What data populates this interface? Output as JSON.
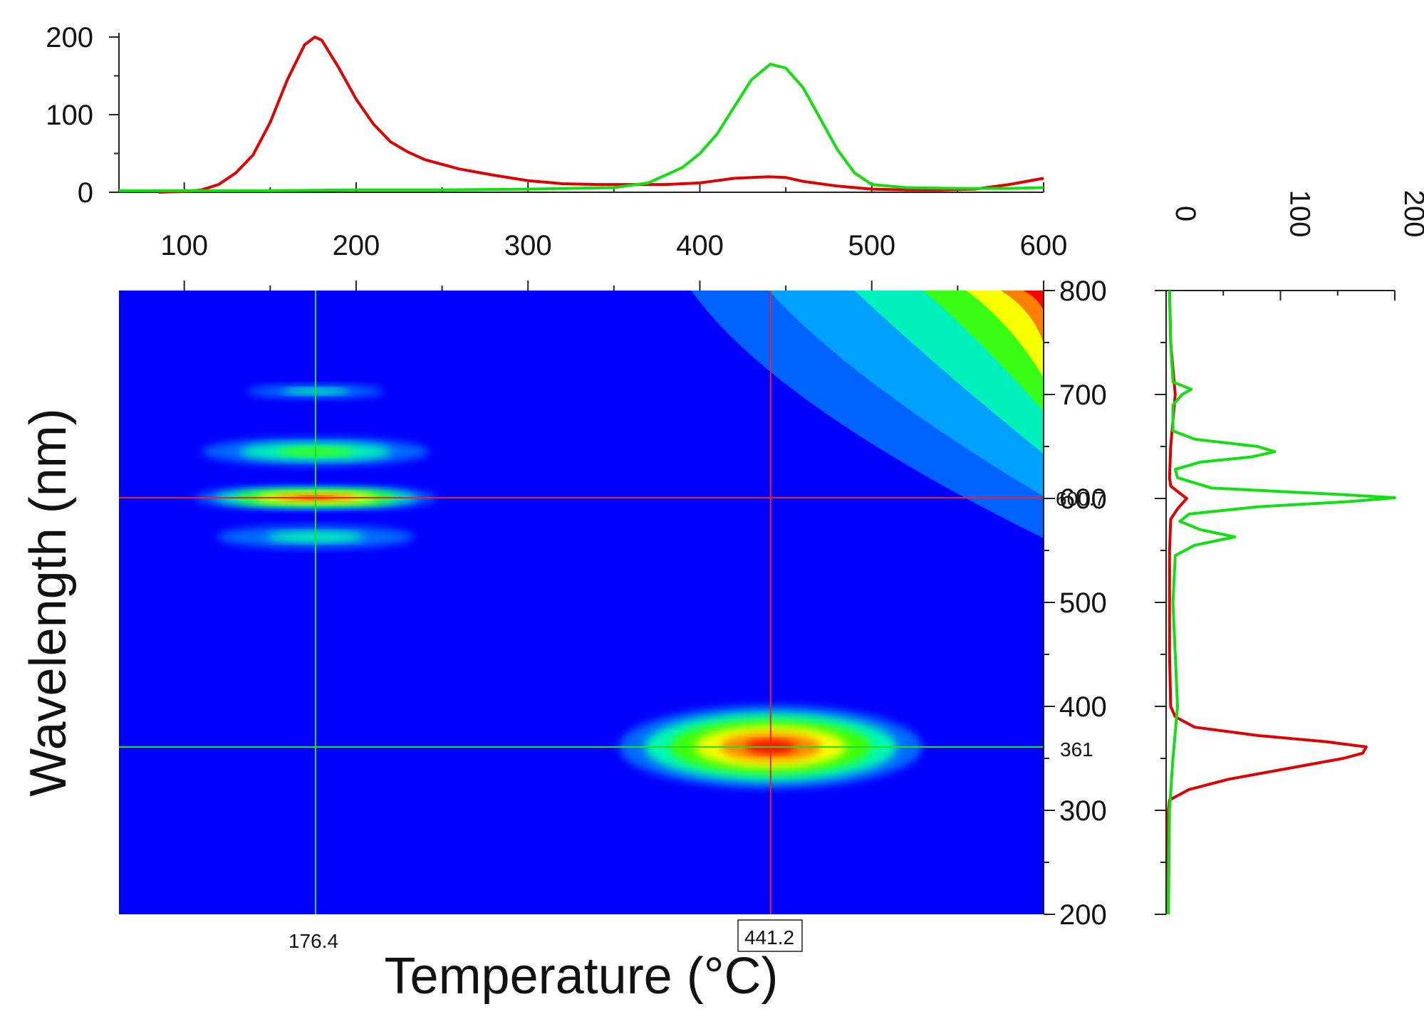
{
  "chart_data": [
    {
      "type": "heatmap",
      "panel": "main-contour-map",
      "xlabel": "Temperature (°C)",
      "ylabel": "Wavelength (nm)",
      "xlim": [
        62,
        600
      ],
      "ylim": [
        200,
        800
      ],
      "y_ticks": [
        200,
        300,
        400,
        500,
        600,
        700,
        800
      ],
      "colormap": [
        "#0000ff",
        "#00b4ff",
        "#00ffb0",
        "#40ff00",
        "#ffff00",
        "#ff8000",
        "#ff0000"
      ],
      "background_color": "#0000ff",
      "hotspots": [
        {
          "x": 176.4,
          "y": 600.7,
          "sx": 32,
          "sy": 5,
          "intensity": 1.0
        },
        {
          "x": 176.4,
          "y": 645,
          "sx": 30,
          "sy": 6,
          "intensity": 0.55
        },
        {
          "x": 176.4,
          "y": 563,
          "sx": 26,
          "sy": 5,
          "intensity": 0.3
        },
        {
          "x": 176.4,
          "y": 703,
          "sx": 18,
          "sy": 3,
          "intensity": 0.12
        },
        {
          "x": 441.2,
          "y": 361,
          "sx": 40,
          "sy": 18,
          "intensity": 1.0
        }
      ],
      "high_temp_ridge": {
        "x_start": 400,
        "x_end": 600,
        "color_band_start_y": 800
      },
      "crosshairs": {
        "green_vertical_x": 176.4,
        "red_vertical_x": 441.2,
        "red_horizontal_y": 600.7,
        "green_horizontal_y": 361
      },
      "marker_labels": {
        "x_green": "176.4",
        "x_red": "441.2",
        "y_red": "600.7",
        "y_green": "361"
      }
    },
    {
      "type": "line",
      "panel": "top-temperature-profile",
      "xlim": [
        62,
        600
      ],
      "ylim": [
        0,
        200
      ],
      "x_ticks": [
        100,
        200,
        300,
        400,
        500,
        600
      ],
      "y_ticks": [
        0,
        100,
        200
      ],
      "series": [
        {
          "color": "#e00000",
          "x": [
            85,
            100,
            110,
            120,
            130,
            140,
            150,
            160,
            170,
            176,
            180,
            190,
            200,
            210,
            220,
            230,
            240,
            260,
            280,
            300,
            320,
            340,
            360,
            380,
            400,
            420,
            440,
            450,
            460,
            480,
            500,
            520,
            540,
            560,
            580,
            600
          ],
          "values": [
            0,
            1,
            3,
            10,
            25,
            48,
            90,
            145,
            190,
            200,
            196,
            160,
            120,
            88,
            65,
            52,
            42,
            30,
            22,
            15,
            11,
            10,
            10,
            10,
            12,
            18,
            20,
            19,
            14,
            8,
            4,
            3,
            3,
            4,
            10,
            18
          ]
        },
        {
          "color": "#10e010",
          "x": [
            62,
            100,
            150,
            200,
            250,
            300,
            350,
            370,
            390,
            400,
            410,
            420,
            430,
            441,
            450,
            460,
            470,
            480,
            490,
            500,
            520,
            550,
            580,
            600
          ],
          "values": [
            2,
            2,
            2,
            3,
            3,
            4,
            6,
            12,
            32,
            50,
            75,
            110,
            145,
            165,
            160,
            135,
            95,
            55,
            25,
            10,
            6,
            5,
            5,
            6
          ]
        }
      ]
    },
    {
      "type": "line",
      "panel": "right-wavelength-profile",
      "xlim": [
        0,
        200
      ],
      "ylim": [
        200,
        800
      ],
      "x_ticks": [
        0,
        100,
        200
      ],
      "series": [
        {
          "color": "#e00000",
          "y": [
            200,
            300,
            310,
            320,
            330,
            340,
            350,
            355,
            361,
            366,
            372,
            380,
            390,
            400,
            450,
            500,
            550,
            580,
            590,
            600,
            605,
            612,
            620,
            650,
            700,
            750,
            800
          ],
          "values": [
            2,
            2,
            3,
            20,
            55,
            105,
            155,
            172,
            175,
            140,
            80,
            25,
            8,
            4,
            3,
            3,
            3,
            4,
            10,
            18,
            12,
            4,
            3,
            4,
            8,
            4,
            3
          ]
        },
        {
          "color": "#10e010",
          "y": [
            200,
            300,
            350,
            400,
            450,
            500,
            545,
            555,
            563,
            570,
            578,
            585,
            592,
            597,
            600.7,
            604,
            610,
            620,
            628,
            635,
            640,
            645,
            650,
            657,
            665,
            690,
            700,
            705,
            712,
            750,
            800
          ],
          "values": [
            2,
            3,
            6,
            10,
            8,
            6,
            8,
            25,
            60,
            30,
            12,
            20,
            80,
            160,
            200,
            150,
            40,
            10,
            8,
            30,
            75,
            95,
            80,
            25,
            6,
            6,
            14,
            22,
            6,
            4,
            3
          ]
        }
      ]
    }
  ]
}
